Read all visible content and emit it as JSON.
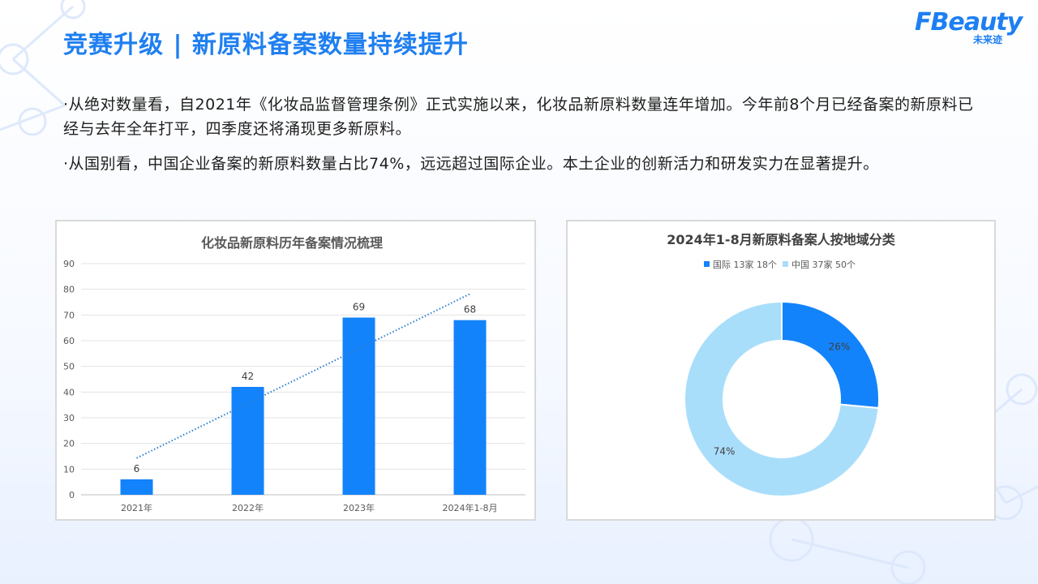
{
  "header": {
    "title": "竞赛升级 | 新原料备案数量持续提升",
    "logo_word": "FBeauty",
    "logo_sub": "未来迹"
  },
  "paragraphs": {
    "p1": "·从绝对数量看，自2021年《化妆品监督管理条例》正式实施以来，化妆品新原料数量连年增加。今年前8个月已经备案的新原料已经与去年全年打平，四季度还将涌现更多新原料。",
    "p2": "·从国别看，中国企业备案的新原料数量占比74%，远远超过国际企业。本土企业的创新活力和研发实力在显著提升。"
  },
  "colors": {
    "accent": "#1f7ff0",
    "bar": "#1383fb",
    "donut_intl": "#1383fb",
    "donut_cn": "#a9defb",
    "trend": "#2b7fd0"
  },
  "chart_data": [
    {
      "type": "bar",
      "title": "化妆品新原料历年备案情况梳理",
      "categories": [
        "2021年",
        "2022年",
        "2023年",
        "2024年1-8月"
      ],
      "values": [
        6,
        42,
        69,
        68
      ],
      "data_labels": [
        "6",
        "42",
        "69",
        "68"
      ],
      "ylim": [
        0,
        90
      ],
      "yticks": [
        0,
        10,
        20,
        30,
        40,
        50,
        60,
        70,
        80,
        90
      ],
      "ytick_labels": [
        "0",
        "10",
        "20",
        "30",
        "40",
        "50",
        "60",
        "70",
        "80",
        "90"
      ],
      "trendline": "linear, dotted",
      "grid": true,
      "xlabel": "",
      "ylabel": ""
    },
    {
      "type": "pie",
      "title": "2024年1-8月新原料备案人按地域分类",
      "donut": true,
      "legend_position": "top",
      "slices": [
        {
          "name": "国际 13家 18个",
          "value": 18,
          "label": "26%"
        },
        {
          "name": "中国 37家 50个",
          "value": 50,
          "label": "74%"
        }
      ]
    }
  ]
}
